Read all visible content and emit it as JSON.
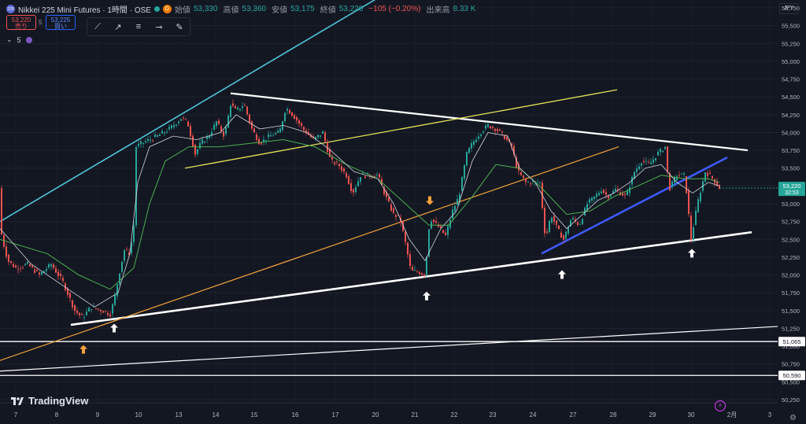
{
  "header": {
    "badge": "225",
    "symbol": "Nikkei 225 Mini Futures · 1時間 · OSE",
    "status_icon": "green-dot-icon",
    "d_badge": "D",
    "open_label": "始値",
    "open_value": "53,330",
    "high_label": "高値",
    "high_value": "53,360",
    "low_label": "安値",
    "low_value": "53,175",
    "close_label": "終値",
    "close_value": "53,220",
    "change": "−105 (−0.20%)",
    "volume_label": "出来高",
    "volume_value": "8.33 K"
  },
  "trade": {
    "sell_price": "53,220",
    "sell_label": "売り",
    "spread": "5",
    "buy_price": "53,225",
    "buy_label": "買い"
  },
  "toolbar_icons": [
    "trend-line-icon",
    "ray-icon",
    "parallel-channel-icon",
    "horizontal-ray-icon",
    "brush-icon"
  ],
  "indicator": {
    "collapse_icon": "chevron-down-icon",
    "count": "5",
    "icon": "indicator-icon"
  },
  "currency": "JPY",
  "logo": "TradingView",
  "chart_data": {
    "type": "candlestick",
    "y_axis": {
      "range": [
        50250,
        55800
      ],
      "ticks": [
        "55,750",
        "55,500",
        "55,250",
        "55,000",
        "54,750",
        "54,500",
        "54,250",
        "54,000",
        "53,750",
        "53,500",
        "53,250",
        "53,000",
        "52,750",
        "52,500",
        "52,250",
        "52,000",
        "51,750",
        "51,500",
        "51,250",
        "51,000",
        "50,750",
        "50,500",
        "50,250"
      ]
    },
    "x_axis": {
      "labels": [
        "7",
        "8",
        "9",
        "10",
        "13",
        "14",
        "15",
        "16",
        "17",
        "20",
        "21",
        "22",
        "23",
        "24",
        "27",
        "28",
        "29",
        "30",
        "2月",
        "3"
      ]
    },
    "current_price": {
      "value": "53,220",
      "countdown": "32:53",
      "color": "#26a69a"
    },
    "price_labels": [
      {
        "value": 51065,
        "text": "51,065"
      },
      {
        "value": 50590,
        "text": "50,590"
      }
    ],
    "moving_averages": [
      "short MA (white)",
      "long MA (green)"
    ],
    "candle_path": [
      [
        0,
        52700
      ],
      [
        3,
        52500
      ],
      [
        10,
        52200
      ],
      [
        20,
        52100
      ],
      [
        35,
        52150
      ],
      [
        50,
        52000
      ],
      [
        65,
        52150
      ],
      [
        80,
        51900
      ],
      [
        95,
        51500
      ],
      [
        105,
        51400
      ],
      [
        115,
        51550
      ],
      [
        130,
        51500
      ],
      [
        140,
        51450
      ],
      [
        145,
        51650
      ],
      [
        152,
        52050
      ],
      [
        158,
        52350
      ],
      [
        165,
        52300
      ],
      [
        170,
        52700
      ],
      [
        173,
        53800
      ],
      [
        180,
        53850
      ],
      [
        190,
        53900
      ],
      [
        200,
        53950
      ],
      [
        215,
        54050
      ],
      [
        230,
        54200
      ],
      [
        238,
        54150
      ],
      [
        248,
        53700
      ],
      [
        255,
        53850
      ],
      [
        265,
        53950
      ],
      [
        275,
        54150
      ],
      [
        285,
        53950
      ],
      [
        293,
        54400
      ],
      [
        300,
        54300
      ],
      [
        310,
        54400
      ],
      [
        320,
        54050
      ],
      [
        330,
        53850
      ],
      [
        342,
        53950
      ],
      [
        355,
        54000
      ],
      [
        363,
        54350
      ],
      [
        372,
        54250
      ],
      [
        385,
        54050
      ],
      [
        398,
        53900
      ],
      [
        410,
        54000
      ],
      [
        420,
        53600
      ],
      [
        430,
        53550
      ],
      [
        440,
        53400
      ],
      [
        448,
        53150
      ],
      [
        458,
        53400
      ],
      [
        470,
        53400
      ],
      [
        480,
        53400
      ],
      [
        490,
        53100
      ],
      [
        500,
        52850
      ],
      [
        508,
        52800
      ],
      [
        516,
        52400
      ],
      [
        522,
        52050
      ],
      [
        530,
        52050
      ],
      [
        540,
        52000
      ],
      [
        546,
        52800
      ],
      [
        555,
        52700
      ],
      [
        566,
        52550
      ],
      [
        575,
        52900
      ],
      [
        583,
        53100
      ],
      [
        593,
        53700
      ],
      [
        600,
        53850
      ],
      [
        610,
        54000
      ],
      [
        620,
        54100
      ],
      [
        630,
        54050
      ],
      [
        640,
        53950
      ],
      [
        650,
        53800
      ],
      [
        658,
        53450
      ],
      [
        668,
        53300
      ],
      [
        678,
        53300
      ],
      [
        686,
        53300
      ],
      [
        693,
        52500
      ],
      [
        700,
        52850
      ],
      [
        708,
        52650
      ],
      [
        716,
        52500
      ],
      [
        726,
        52800
      ],
      [
        736,
        52700
      ],
      [
        746,
        53000
      ],
      [
        756,
        53100
      ],
      [
        764,
        53200
      ],
      [
        772,
        53100
      ],
      [
        782,
        53200
      ],
      [
        795,
        53100
      ],
      [
        806,
        53450
      ],
      [
        815,
        53600
      ],
      [
        825,
        53550
      ],
      [
        835,
        53700
      ],
      [
        845,
        53800
      ],
      [
        850,
        53200
      ],
      [
        860,
        53400
      ],
      [
        870,
        53400
      ],
      [
        878,
        52500
      ],
      [
        886,
        53000
      ],
      [
        896,
        53450
      ],
      [
        906,
        53350
      ],
      [
        914,
        53220
      ]
    ],
    "ma_short": [
      [
        0,
        52650
      ],
      [
        40,
        52150
      ],
      [
        80,
        51850
      ],
      [
        120,
        51550
      ],
      [
        150,
        51750
      ],
      [
        165,
        52300
      ],
      [
        175,
        53300
      ],
      [
        190,
        53800
      ],
      [
        220,
        53950
      ],
      [
        250,
        53900
      ],
      [
        280,
        54000
      ],
      [
        300,
        54250
      ],
      [
        330,
        54050
      ],
      [
        360,
        54100
      ],
      [
        390,
        54000
      ],
      [
        420,
        53750
      ],
      [
        450,
        53450
      ],
      [
        480,
        53350
      ],
      [
        500,
        53000
      ],
      [
        520,
        52500
      ],
      [
        540,
        52200
      ],
      [
        560,
        52650
      ],
      [
        580,
        52900
      ],
      [
        600,
        53600
      ],
      [
        620,
        54000
      ],
      [
        645,
        53950
      ],
      [
        660,
        53500
      ],
      [
        680,
        53300
      ],
      [
        700,
        52900
      ],
      [
        720,
        52650
      ],
      [
        740,
        52850
      ],
      [
        760,
        53050
      ],
      [
        780,
        53150
      ],
      [
        800,
        53300
      ],
      [
        820,
        53500
      ],
      [
        840,
        53550
      ],
      [
        860,
        53300
      ],
      [
        880,
        53150
      ],
      [
        900,
        53300
      ],
      [
        914,
        53250
      ]
    ],
    "ma_long": [
      [
        0,
        52500
      ],
      [
        60,
        52300
      ],
      [
        100,
        52000
      ],
      [
        140,
        51800
      ],
      [
        170,
        52100
      ],
      [
        190,
        53000
      ],
      [
        210,
        53600
      ],
      [
        240,
        53800
      ],
      [
        280,
        53800
      ],
      [
        320,
        53850
      ],
      [
        360,
        53900
      ],
      [
        400,
        53800
      ],
      [
        440,
        53550
      ],
      [
        480,
        53350
      ],
      [
        520,
        52950
      ],
      [
        545,
        52700
      ],
      [
        570,
        52700
      ],
      [
        600,
        53100
      ],
      [
        630,
        53550
      ],
      [
        660,
        53500
      ],
      [
        690,
        53200
      ],
      [
        720,
        52850
      ],
      [
        750,
        52900
      ],
      [
        780,
        53100
      ],
      [
        810,
        53250
      ],
      [
        840,
        53400
      ],
      [
        870,
        53350
      ],
      [
        900,
        53350
      ],
      [
        914,
        53300
      ]
    ],
    "trendlines": [
      {
        "name": "upper-channel",
        "color": "#4fc3d8",
        "p1": [
          0,
          52750
        ],
        "p2": [
          497,
          56000
        ]
      },
      {
        "name": "descending-resistance",
        "color": "#ffffff",
        "p1": [
          293,
          54550
        ],
        "p2": [
          950,
          53750
        ]
      },
      {
        "name": "ascending-support",
        "color": "#ffffff",
        "p1": [
          90,
          51300
        ],
        "p2": [
          955,
          52600
        ]
      },
      {
        "name": "yellow-line",
        "color": "#e8e35a",
        "p1": [
          235,
          53500
        ],
        "p2": [
          784,
          54600
        ]
      },
      {
        "name": "orange-line",
        "color": "#f6a33b",
        "p1": [
          0,
          50800
        ],
        "p2": [
          786,
          53800
        ]
      },
      {
        "name": "blue-line",
        "color": "#3d5afe",
        "p1": [
          688,
          52300
        ],
        "p2": [
          924,
          53650
        ]
      },
      {
        "name": "long-white-thin",
        "color": "#ffffff",
        "p1": [
          0,
          50650
        ],
        "p2": [
          1024,
          51300
        ]
      }
    ],
    "horizontal_lines": [
      51065,
      50590
    ],
    "arrows": [
      {
        "color": "orange",
        "direction": "up",
        "x": 106,
        "value": 50950
      },
      {
        "color": "white",
        "direction": "up",
        "x": 145,
        "value": 51250
      },
      {
        "color": "orange",
        "direction": "down",
        "x": 546,
        "value": 53050
      },
      {
        "color": "white",
        "direction": "up",
        "x": 542,
        "value": 51700
      },
      {
        "color": "white",
        "direction": "up",
        "x": 714,
        "value": 52000
      },
      {
        "color": "white",
        "direction": "up",
        "x": 879,
        "value": 52300
      }
    ]
  }
}
